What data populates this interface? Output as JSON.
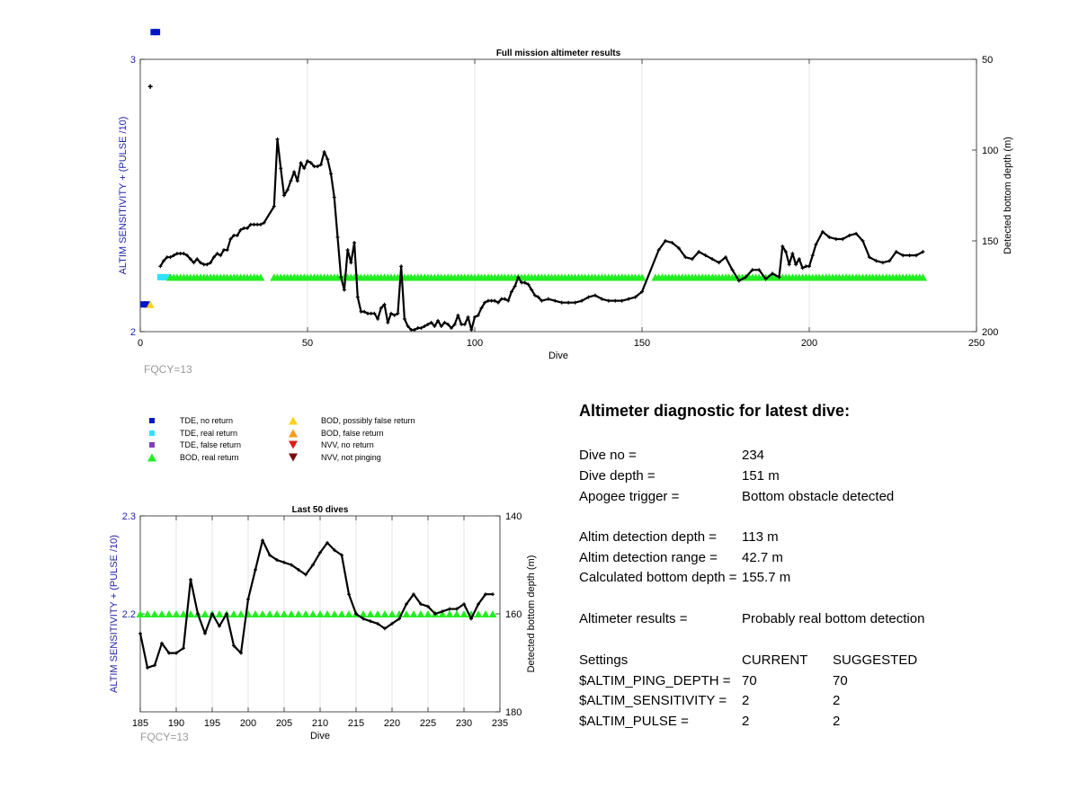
{
  "colors": {
    "blue_axis": "#1f1fa6",
    "series_line": "#000000",
    "tde_no_return": "#0016c8",
    "tde_real_return": "#33e1ff",
    "tde_false_return": "#7f3fbf",
    "bod_real_return": "#22ee22",
    "bod_possibly_false": "#ffd21a",
    "bod_false_return": "#ff9a1a",
    "nvv_no_return": "#e11a1a",
    "nvv_not_pinging": "#7a0c0c",
    "fqcy_gray": "#9a9a9a"
  },
  "legend": [
    {
      "label": "TDE, no return",
      "color_key": "tde_no_return",
      "marker": "square"
    },
    {
      "label": "TDE, real return",
      "color_key": "tde_real_return",
      "marker": "square"
    },
    {
      "label": "TDE, false return",
      "color_key": "tde_false_return",
      "marker": "square"
    },
    {
      "label": "BOD, real return",
      "color_key": "bod_real_return",
      "marker": "triangle-up"
    },
    {
      "label": "BOD, possibly false return",
      "color_key": "bod_possibly_false",
      "marker": "triangle-up"
    },
    {
      "label": "BOD, false return",
      "color_key": "bod_false_return",
      "marker": "triangle-up"
    },
    {
      "label": "NVV, no return",
      "color_key": "nvv_no_return",
      "marker": "triangle-down"
    },
    {
      "label": "NVV, not pinging",
      "color_key": "nvv_not_pinging",
      "marker": "triangle-down"
    }
  ],
  "chart_data": [
    {
      "type": "line",
      "title": "Full mission altimeter results",
      "xlabel": "Dive",
      "ylabel_left": "ALTIM SENSITIVITY + (PULSE /10)",
      "ylabel_right": "Detected bottom depth (m)",
      "note": "FQCY=13",
      "xlim": [
        0,
        250
      ],
      "ylim_left": [
        2,
        3
      ],
      "ylim_right": [
        50,
        200
      ],
      "right_axis_reversed": true,
      "xticks": [
        0,
        50,
        100,
        150,
        200,
        250
      ],
      "yticks_left": [
        2,
        3
      ],
      "yticks_right": [
        50,
        100,
        150,
        200
      ],
      "grid": true,
      "markers": [
        {
          "category": "TDE, no return",
          "x": [
            1,
            2
          ],
          "y": [
            2.1,
            2.1
          ]
        },
        {
          "category": "TDE, no return",
          "x": [
            4,
            5
          ],
          "y": [
            3.1,
            3.1
          ]
        },
        {
          "category": "TDE, real return",
          "x": [
            6,
            7,
            8
          ],
          "y": [
            2.2,
            2.2,
            2.2
          ]
        },
        {
          "category": "BOD, possibly false return",
          "x": [
            3
          ],
          "y": [
            2.1
          ]
        },
        {
          "category": "BOD, real return",
          "segments": [
            [
              9,
              36
            ],
            [
              40,
              150
            ],
            [
              154,
              234
            ]
          ],
          "y": 2.2
        }
      ],
      "series": [
        {
          "name": "Detected bottom depth (m)",
          "axis": "right",
          "x": [
            3,
            6,
            7,
            8,
            9,
            10,
            11,
            12,
            13,
            14,
            15,
            16,
            17,
            18,
            19,
            20,
            21,
            22,
            23,
            24,
            25,
            26,
            27,
            28,
            29,
            30,
            31,
            32,
            33,
            34,
            35,
            36,
            37,
            40,
            41,
            42,
            43,
            44,
            45,
            46,
            47,
            48,
            49,
            50,
            51,
            52,
            53,
            54,
            55,
            56,
            57,
            58,
            59,
            60,
            61,
            62,
            63,
            64,
            65,
            66,
            67,
            68,
            69,
            70,
            71,
            72,
            73,
            74,
            75,
            76,
            77,
            78,
            79,
            80,
            81,
            82,
            83,
            84,
            85,
            86,
            87,
            88,
            89,
            90,
            91,
            92,
            93,
            94,
            95,
            96,
            97,
            98,
            99,
            100,
            101,
            102,
            103,
            104,
            105,
            106,
            107,
            108,
            109,
            110,
            111,
            112,
            113,
            114,
            115,
            116,
            117,
            118,
            119,
            120,
            122,
            124,
            126,
            128,
            130,
            132,
            134,
            136,
            138,
            140,
            142,
            144,
            146,
            148,
            150,
            155,
            157,
            159,
            161,
            163,
            165,
            167,
            169,
            171,
            173,
            175,
            177,
            179,
            181,
            183,
            185,
            187,
            189,
            191,
            192,
            193,
            194,
            195,
            196,
            197,
            198,
            199,
            200,
            201,
            202,
            204,
            206,
            208,
            210,
            212,
            214,
            216,
            218,
            220,
            222,
            224,
            226,
            228,
            230,
            232,
            234
          ],
          "values": [
            65,
            164,
            161,
            159,
            159,
            158,
            157,
            157,
            157,
            158,
            160,
            162,
            160,
            162,
            163,
            163,
            162,
            159,
            157,
            158,
            155,
            155,
            149,
            147,
            147,
            144,
            143,
            143,
            141,
            141,
            141,
            141,
            140,
            131,
            94,
            110,
            125,
            122,
            117,
            112,
            117,
            107,
            110,
            106,
            107,
            109,
            109,
            108,
            101,
            105,
            113,
            126,
            148,
            170,
            177,
            155,
            162,
            151,
            181,
            189,
            189,
            190,
            190,
            190,
            193,
            187,
            185,
            195,
            190,
            191,
            190,
            164,
            193,
            197,
            199,
            199,
            198,
            198,
            197,
            196,
            195,
            197,
            194,
            197,
            195,
            196,
            198,
            196,
            191,
            196,
            196,
            192,
            199,
            192,
            191,
            187,
            184,
            183,
            183,
            183,
            184,
            182,
            182,
            183,
            178,
            175,
            170,
            173,
            173,
            174,
            177,
            180,
            181,
            183,
            182,
            183,
            184,
            184,
            184,
            183,
            181,
            180,
            182,
            183,
            183,
            183,
            182,
            181,
            178,
            155,
            150,
            151,
            154,
            159,
            160,
            156,
            158,
            160,
            162,
            159,
            166,
            172,
            170,
            166,
            166,
            171,
            168,
            170,
            153,
            156,
            163,
            157,
            163,
            160,
            165,
            164,
            164,
            158,
            152,
            145,
            148,
            149,
            149,
            147,
            146,
            150,
            159,
            161,
            162,
            161,
            156,
            158,
            158,
            158,
            156
          ]
        }
      ]
    },
    {
      "type": "line",
      "title": "Last 50 dives",
      "xlabel": "Dive",
      "ylabel_left": "ALTIM SENSITIVITY + (PULSE /10)",
      "ylabel_right": "Detected bottom depth (m)",
      "note": "FQCY=13",
      "xlim": [
        185,
        235
      ],
      "ylim_left": [
        2.1,
        2.3
      ],
      "ylim_right": [
        140,
        180
      ],
      "right_axis_reversed": true,
      "xticks": [
        185,
        190,
        195,
        200,
        205,
        210,
        215,
        220,
        225,
        230,
        235
      ],
      "yticks_left": [
        2.2,
        2.3
      ],
      "yticks_left_labels": [
        "2.2",
        "2.3"
      ],
      "yticks_right": [
        140,
        160,
        180
      ],
      "grid": true,
      "markers": [
        {
          "category": "BOD, real return",
          "segments": [
            [
              185,
              234
            ]
          ],
          "y": 2.2
        }
      ],
      "series": [
        {
          "name": "Detected bottom depth (m)",
          "axis": "right",
          "x": [
            185,
            186,
            187,
            188,
            189,
            190,
            191,
            192,
            193,
            194,
            195,
            196,
            197,
            198,
            199,
            200,
            201,
            202,
            203,
            204,
            205,
            206,
            207,
            208,
            209,
            210,
            211,
            212,
            213,
            214,
            215,
            216,
            217,
            218,
            219,
            220,
            221,
            222,
            223,
            224,
            225,
            226,
            227,
            228,
            229,
            230,
            231,
            232,
            233,
            234
          ],
          "values": [
            164,
            171,
            170.5,
            166,
            168,
            168,
            167,
            153,
            160,
            164,
            160,
            162.5,
            160,
            166.5,
            168,
            157,
            151,
            145,
            148,
            149,
            149.5,
            150,
            151,
            152,
            150,
            147.5,
            145.5,
            147,
            148,
            156,
            160,
            161,
            161.5,
            162,
            163,
            162,
            161,
            158,
            156,
            158,
            158.5,
            160,
            159.5,
            159,
            159,
            158,
            161,
            158,
            156,
            156
          ]
        }
      ]
    }
  ],
  "diagnostic": {
    "title": "Altimeter diagnostic for latest dive:",
    "rows": [
      {
        "label": "Dive no =",
        "value": "234"
      },
      {
        "label": "Dive depth =",
        "value": "151 m"
      },
      {
        "label": "Apogee trigger =",
        "value": "Bottom obstacle detected"
      },
      {
        "label": "Altim detection depth =",
        "value": "113 m"
      },
      {
        "label": "Altim detection range =",
        "value": "42.7 m"
      },
      {
        "label": "Calculated bottom depth =",
        "value": "155.7 m"
      },
      {
        "label": "Altimeter results =",
        "value": "Probably real bottom detection"
      }
    ],
    "settings_header": {
      "label": "Settings",
      "current": "CURRENT",
      "suggested": "SUGGESTED"
    },
    "settings": [
      {
        "label": "$ALTIM_PING_DEPTH =",
        "current": "70",
        "suggested": "70"
      },
      {
        "label": "$ALTIM_SENSITIVITY =",
        "current": "2",
        "suggested": "2"
      },
      {
        "label": "$ALTIM_PULSE =",
        "current": "2",
        "suggested": "2"
      }
    ]
  }
}
